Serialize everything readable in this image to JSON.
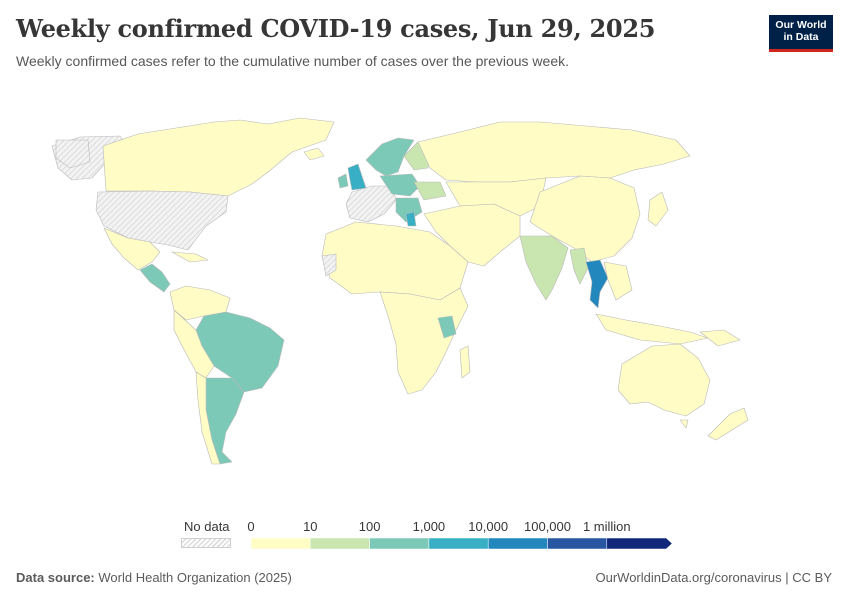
{
  "header": {
    "title": "Weekly confirmed COVID-19 cases, Jun 29, 2025",
    "subtitle": "Weekly confirmed cases refer to the cumulative number of cases over the previous week."
  },
  "logo": {
    "line1": "Our World",
    "line2": "in Data"
  },
  "legend": {
    "no_data_label": "No data",
    "ticks": [
      "0",
      "10",
      "100",
      "1,000",
      "10,000",
      "100,000",
      "1 million"
    ],
    "colors": [
      "#fffcc6",
      "#c9e6b0",
      "#7cc9b8",
      "#38afc4",
      "#2187bc",
      "#2956a1",
      "#11287a"
    ],
    "no_data_color": "#e6e6e6"
  },
  "footer": {
    "source_label": "Data source:",
    "source_value": "World Health Organization (2025)",
    "url": "OurWorldinData.org/coronavirus | CC BY"
  },
  "map_data": {
    "countries": [
      {
        "name": "Canada",
        "bin": 0
      },
      {
        "name": "Greenland",
        "bin": -1
      },
      {
        "name": "United States",
        "bin": -1
      },
      {
        "name": "Mexico",
        "bin": 0
      },
      {
        "name": "Central America",
        "bin": 2
      },
      {
        "name": "Brazil",
        "bin": 2
      },
      {
        "name": "Argentina",
        "bin": 2
      },
      {
        "name": "Chile",
        "bin": 0
      },
      {
        "name": "Peru",
        "bin": 0
      },
      {
        "name": "Colombia",
        "bin": 0
      },
      {
        "name": "Venezuela",
        "bin": 0
      },
      {
        "name": "United Kingdom",
        "bin": 3
      },
      {
        "name": "Ireland",
        "bin": 2
      },
      {
        "name": "Scandinavia",
        "bin": 2
      },
      {
        "name": "Finland",
        "bin": 1
      },
      {
        "name": "Poland",
        "bin": 2
      },
      {
        "name": "Ukraine",
        "bin": 1
      },
      {
        "name": "Greece",
        "bin": 3
      },
      {
        "name": "Russia",
        "bin": 0
      },
      {
        "name": "China",
        "bin": 0
      },
      {
        "name": "India",
        "bin": 1
      },
      {
        "name": "Myanmar",
        "bin": 1
      },
      {
        "name": "Thailand",
        "bin": 4
      },
      {
        "name": "Africa",
        "bin": 0
      },
      {
        "name": "Australia",
        "bin": 0
      },
      {
        "name": "Indonesia",
        "bin": 0
      }
    ]
  }
}
